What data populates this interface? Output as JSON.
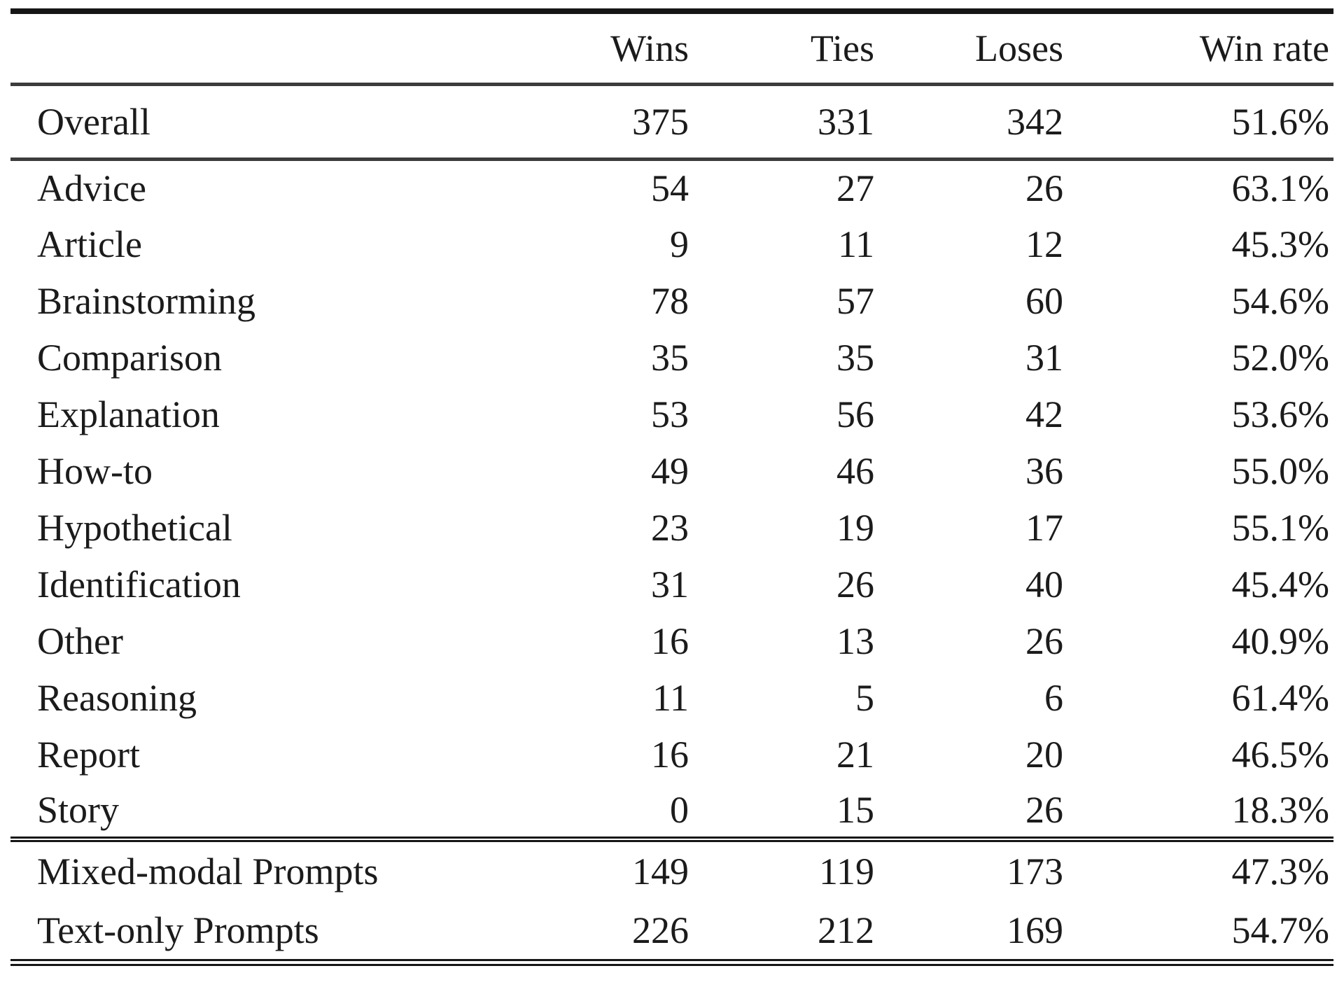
{
  "table": {
    "columns": [
      "",
      "Wins",
      "Ties",
      "Loses",
      "Win rate"
    ],
    "overall": {
      "label": "Overall",
      "values": [
        "375",
        "331",
        "342",
        "51.6%"
      ]
    },
    "categories": [
      {
        "label": "Advice",
        "values": [
          "54",
          "27",
          "26",
          "63.1%"
        ]
      },
      {
        "label": "Article",
        "values": [
          "9",
          "11",
          "12",
          "45.3%"
        ]
      },
      {
        "label": "Brainstorming",
        "values": [
          "78",
          "57",
          "60",
          "54.6%"
        ]
      },
      {
        "label": "Comparison",
        "values": [
          "35",
          "35",
          "31",
          "52.0%"
        ]
      },
      {
        "label": "Explanation",
        "values": [
          "53",
          "56",
          "42",
          "53.6%"
        ]
      },
      {
        "label": "How-to",
        "values": [
          "49",
          "46",
          "36",
          "55.0%"
        ]
      },
      {
        "label": "Hypothetical",
        "values": [
          "23",
          "19",
          "17",
          "55.1%"
        ]
      },
      {
        "label": "Identification",
        "values": [
          "31",
          "26",
          "40",
          "45.4%"
        ]
      },
      {
        "label": "Other",
        "values": [
          "16",
          "13",
          "26",
          "40.9%"
        ]
      },
      {
        "label": "Reasoning",
        "values": [
          "11",
          "5",
          "6",
          "61.4%"
        ]
      },
      {
        "label": "Report",
        "values": [
          "16",
          "21",
          "20",
          "46.5%"
        ]
      },
      {
        "label": "Story",
        "values": [
          "0",
          "15",
          "26",
          "18.3%"
        ]
      }
    ],
    "summary": [
      {
        "label": "Mixed-modal Prompts",
        "values": [
          "149",
          "119",
          "173",
          "47.3%"
        ]
      },
      {
        "label": "Text-only Prompts",
        "values": [
          "226",
          "212",
          "169",
          "54.7%"
        ]
      }
    ]
  }
}
